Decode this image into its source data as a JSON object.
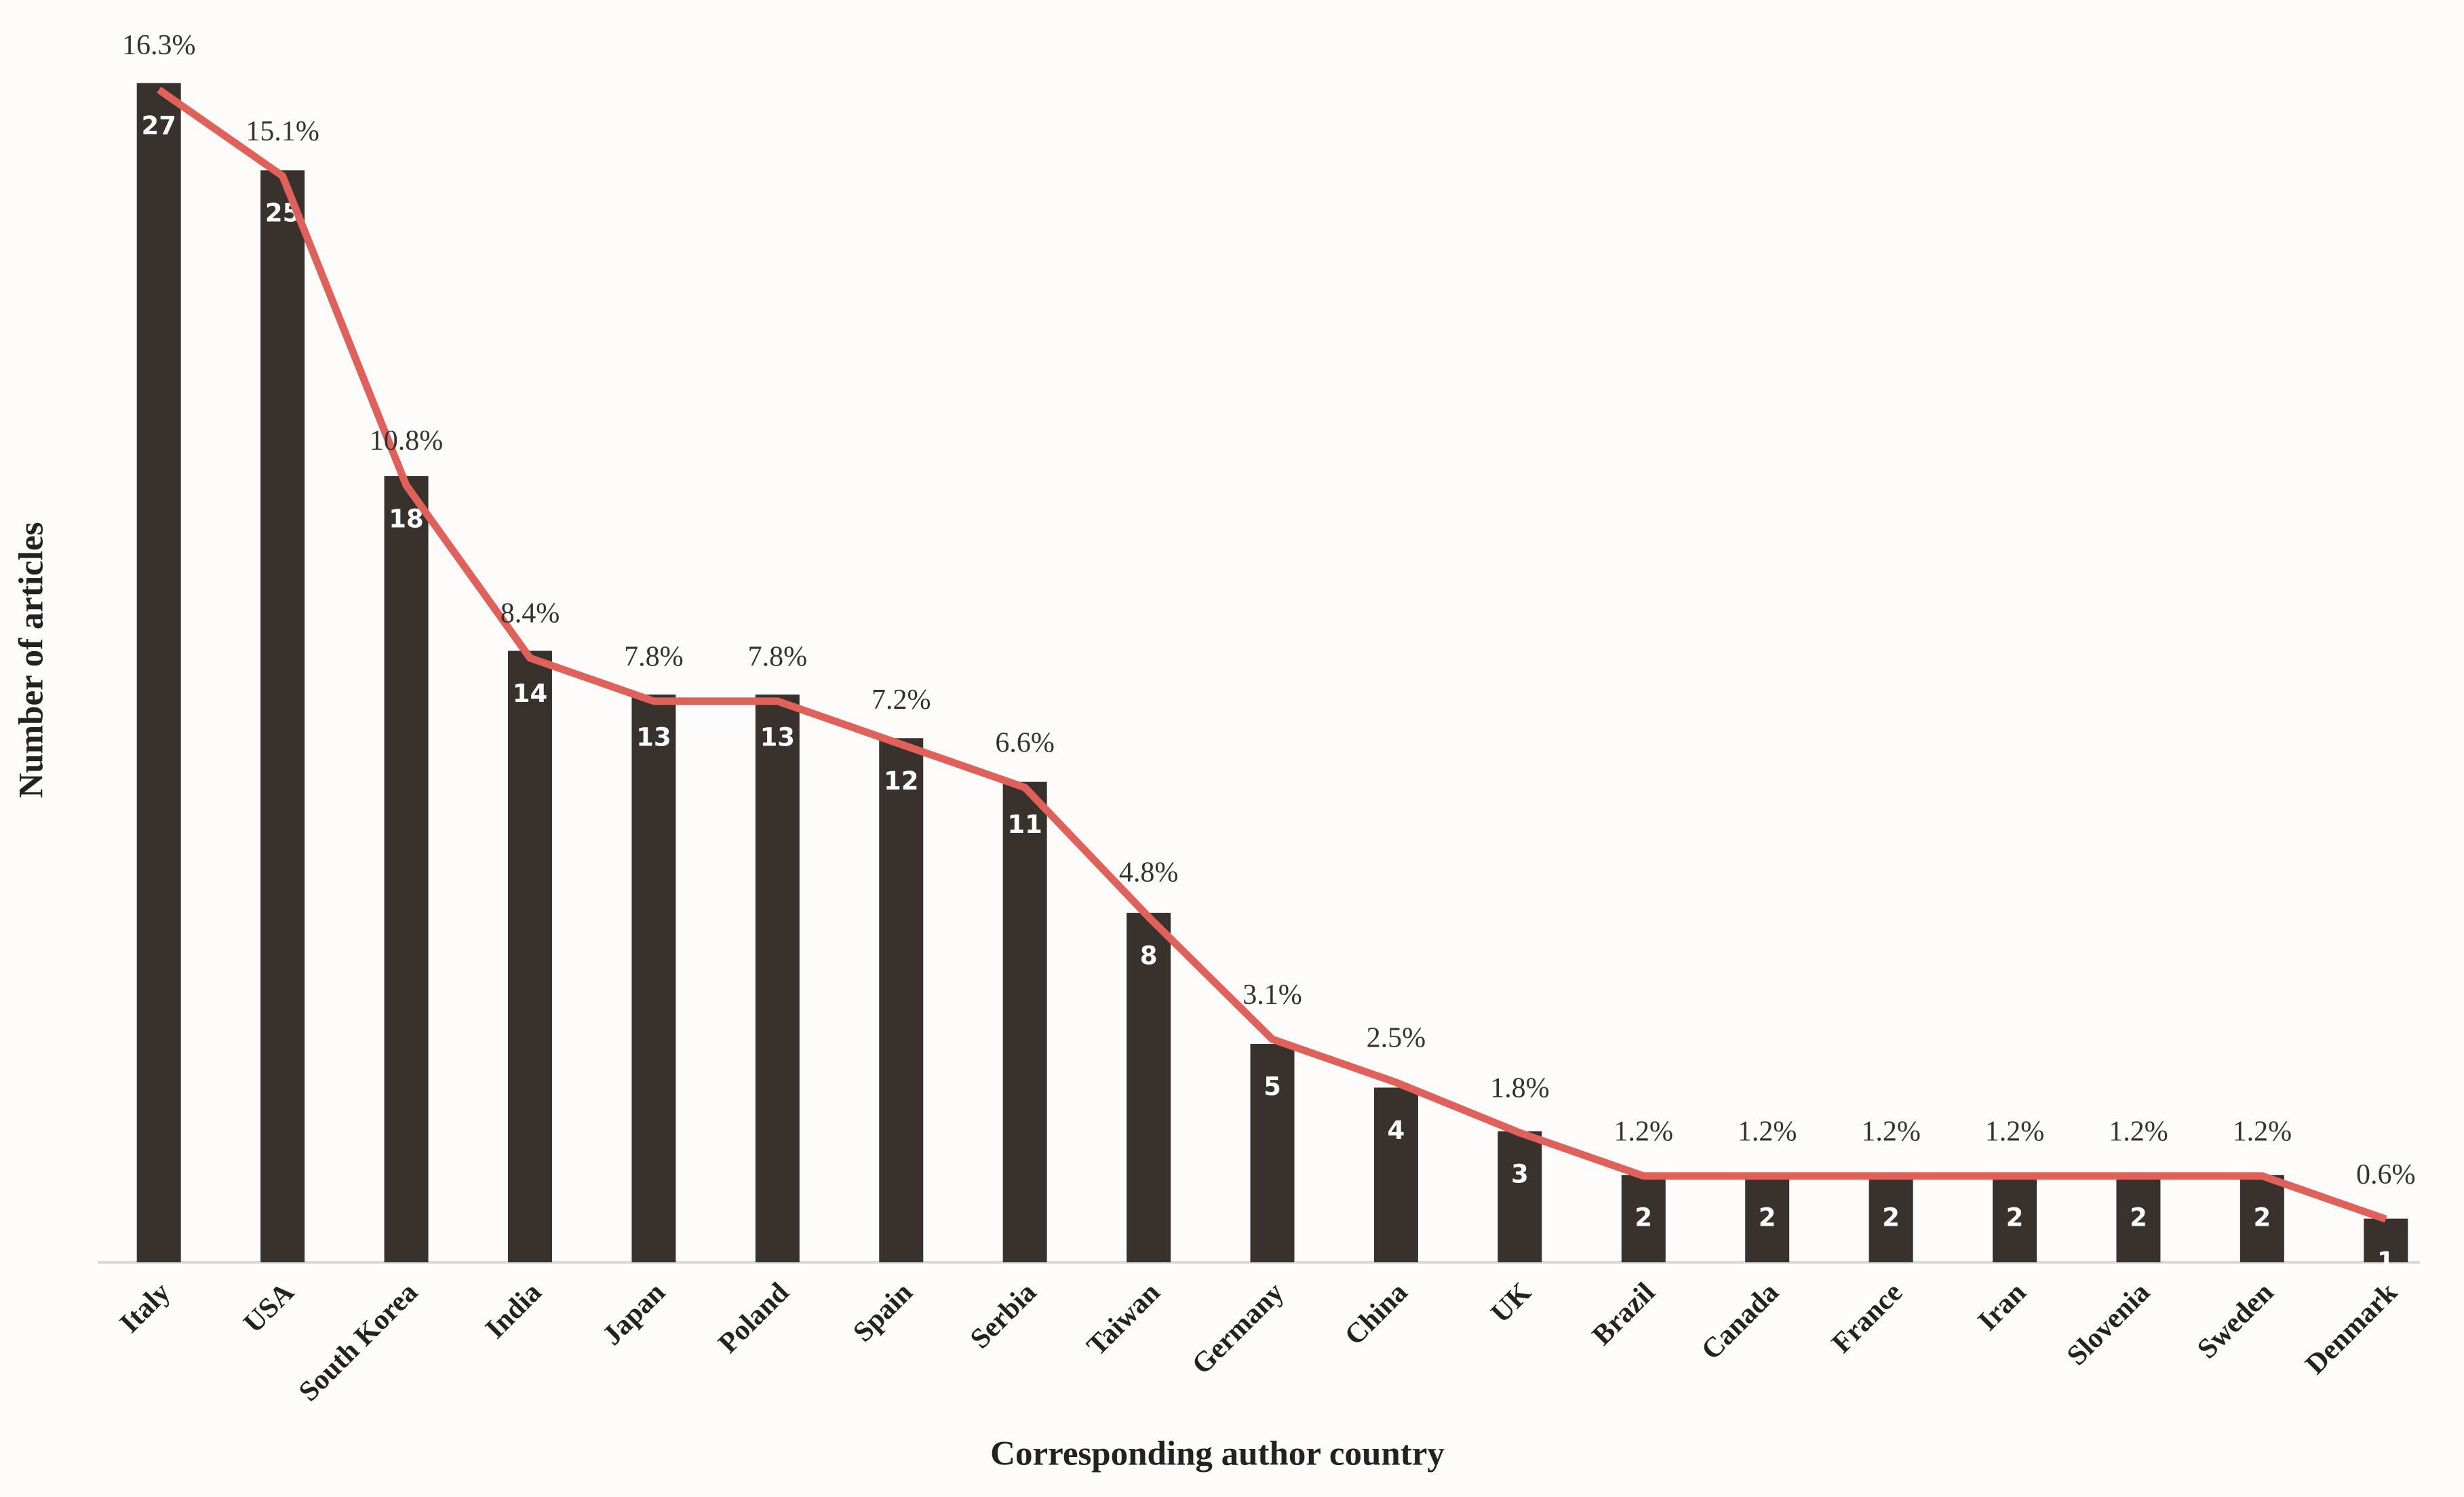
{
  "chart_data": {
    "type": "bar",
    "x_label": "Corresponding author country",
    "y_label": "Number of articles",
    "categories": [
      "Italy",
      "USA",
      "South Korea",
      "India",
      "Japan",
      "Poland",
      "Spain",
      "Serbia",
      "Taiwan",
      "Germany",
      "China",
      "UK",
      "Brazil",
      "Canada",
      "France",
      "Iran",
      "Slovenia",
      "Sweden",
      "Denmark"
    ],
    "series": [
      {
        "type": "bar",
        "color": "#38312c",
        "values": [
          27,
          25,
          18,
          14,
          13,
          13,
          12,
          11,
          8,
          5,
          4,
          3,
          2,
          2,
          2,
          2,
          2,
          2,
          1
        ]
      },
      {
        "type": "line",
        "axis": "y2",
        "color": "#e0605a",
        "values": [
          16.3,
          15.1,
          10.8,
          8.4,
          7.8,
          7.8,
          7.2,
          6.6,
          4.8,
          3.1,
          2.5,
          1.8,
          1.2,
          1.2,
          1.2,
          1.2,
          1.2,
          1.2,
          0.6
        ],
        "value_labels": [
          "16.3%",
          "15.1%",
          "10.8%",
          "8.4%",
          "7.8%",
          "7.8%",
          "7.2%",
          "6.6%",
          "4.8%",
          "3.1%",
          "2.5%",
          "1.8%",
          "1.2%",
          "1.2%",
          "1.2%",
          "1.2%",
          "1.2%",
          "1.2%",
          "0.6%"
        ]
      }
    ],
    "ylim": [
      0,
      28
    ],
    "y2lim": [
      0,
      17
    ]
  }
}
